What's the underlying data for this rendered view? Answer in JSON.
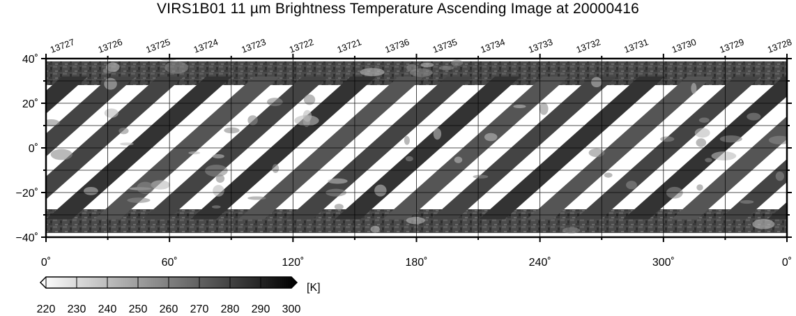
{
  "title": "VIRS1B01 11 µm Brightness Temperature Ascending Image at 20000416",
  "map": {
    "x_ticks": [
      "0˚",
      "60˚",
      "120˚",
      "180˚",
      "240˚",
      "300˚",
      "0˚"
    ],
    "y_ticks": [
      "40˚",
      "20˚",
      "0˚",
      "−20˚",
      "−40˚"
    ],
    "orbit_numbers": [
      "13727",
      "13726",
      "13725",
      "13724",
      "13723",
      "13722",
      "13721",
      "13736",
      "13735",
      "13734",
      "13733",
      "13732",
      "13731",
      "13730",
      "13729",
      "13728"
    ],
    "lon_range": [
      0,
      360
    ],
    "lat_range": [
      -40,
      40
    ],
    "swath_tone": "dark gray cloud/surface imagery",
    "gap_color": "#ffffff"
  },
  "colorbar": {
    "unit": "[K]",
    "ticks": [
      "220",
      "230",
      "240",
      "250",
      "260",
      "270",
      "280",
      "290",
      "300"
    ],
    "range": [
      220,
      300
    ],
    "color_low": "#ffffff",
    "color_high": "#000000"
  }
}
